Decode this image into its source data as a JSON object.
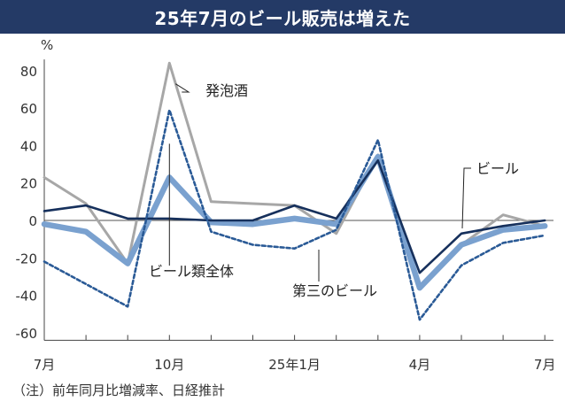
{
  "header": {
    "title": "25年7月のビール販売は増えた"
  },
  "footer": {
    "note": "（注）前年同月比増減率、日経推計"
  },
  "chart_data": {
    "type": "line",
    "unit": "%",
    "x": [
      "2024-07",
      "2024-08",
      "2024-09",
      "2024-10",
      "2024-11",
      "2024-12",
      "2025-01",
      "2025-02",
      "2025-03",
      "2025-04",
      "2025-05",
      "2025-06",
      "2025-07"
    ],
    "x_tick_labels": [
      {
        "index": 0,
        "label": "7月"
      },
      {
        "index": 3,
        "label": "10月"
      },
      {
        "index": 6,
        "label": "25年1月"
      },
      {
        "index": 9,
        "label": "4月"
      },
      {
        "index": 12,
        "label": "7月"
      }
    ],
    "ylim": [
      -64,
      86
    ],
    "y_ticks": [
      80,
      60,
      40,
      20,
      0,
      -20,
      -40,
      -60
    ],
    "colors": {
      "title_bar": "#243a66",
      "happoshu": "#a7a7a7",
      "beer_total": "#7aa1cf",
      "beer": "#16305c",
      "third_beer": "#2a5a96"
    },
    "series": [
      {
        "name": "発泡酒",
        "style": "solid-gray",
        "values": [
          23,
          9,
          -23,
          84,
          10,
          9,
          8,
          -7,
          35,
          -35,
          -13,
          3,
          -3
        ]
      },
      {
        "name": "ビール類全体",
        "style": "thick-lightblue",
        "values": [
          -2,
          -6,
          -23,
          23,
          -1,
          -2,
          1,
          -2,
          34,
          -36,
          -13,
          -5,
          -3
        ]
      },
      {
        "name": "ビール",
        "style": "solid-navy",
        "values": [
          5,
          8,
          1,
          1,
          0,
          0,
          8,
          1,
          32,
          -28,
          -7,
          -3,
          0
        ]
      },
      {
        "name": "第三のビール",
        "style": "dashed-blue",
        "values": [
          -22,
          -34,
          -46,
          59,
          -6,
          -13,
          -15,
          -5,
          43,
          -53,
          -24,
          -12,
          -8
        ]
      }
    ]
  }
}
